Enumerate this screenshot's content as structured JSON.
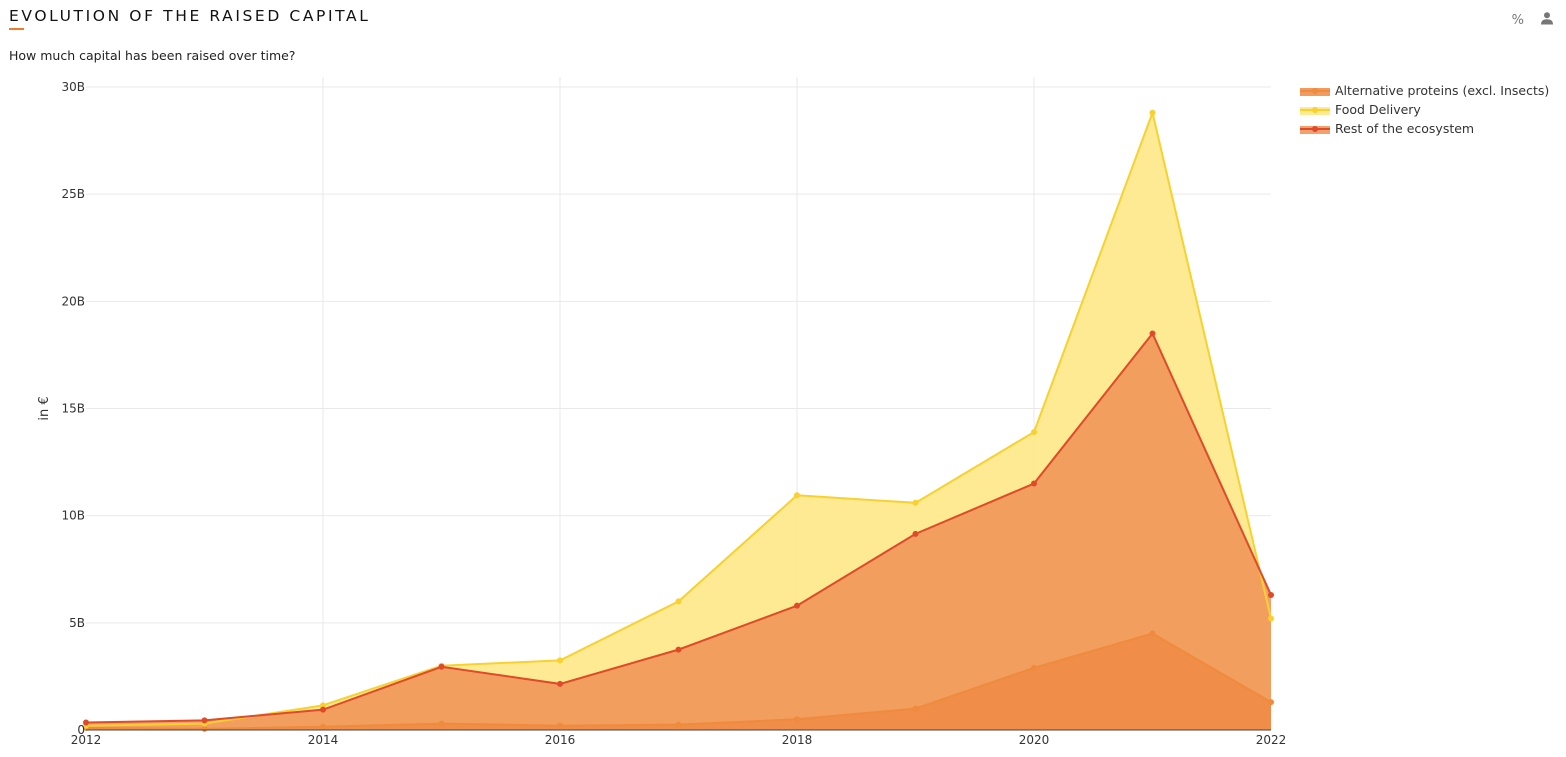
{
  "header": {
    "title": "EVOLUTION OF THE RAISED CAPITAL",
    "subtitle": "How much capital has been raised over time?"
  },
  "toolbar": {
    "percent_label": "%",
    "user_icon": "user-icon"
  },
  "colors": {
    "accent": "#f07b2a",
    "alt_proteins_line": "#f08a3c",
    "alt_proteins_fill": "#ef8a45",
    "food_delivery_line": "#f8d12f",
    "food_delivery_fill": "#fde98c",
    "rest_line": "#df4a2a",
    "rest_fill": "#ee9055"
  },
  "chart_data": {
    "type": "area",
    "title": "EVOLUTION OF THE RAISED CAPITAL",
    "subtitle": "How much capital has been raised over time?",
    "xlabel": "",
    "ylabel": "in €",
    "x": [
      2012,
      2013,
      2014,
      2015,
      2016,
      2017,
      2018,
      2019,
      2020,
      2021,
      2022
    ],
    "xlim": [
      2012,
      2022
    ],
    "ylim": [
      0,
      30000000000
    ],
    "x_ticks": [
      2012,
      2014,
      2016,
      2018,
      2020,
      2022
    ],
    "y_ticks": [
      0,
      5000000000,
      10000000000,
      15000000000,
      20000000000,
      25000000000,
      30000000000
    ],
    "y_tick_labels": [
      "0",
      "5B",
      "10B",
      "15B",
      "20B",
      "25B",
      "30B"
    ],
    "grid": true,
    "legend_position": "top-right",
    "series": [
      {
        "name": "Alternative proteins (excl. Insects)",
        "key": "alt",
        "values": [
          100000000.0,
          50000000.0,
          150000000.0,
          300000000.0,
          200000000.0,
          250000000.0,
          500000000.0,
          1000000000.0,
          2900000000.0,
          4500000000.0,
          1300000000.0
        ]
      },
      {
        "name": "Food Delivery",
        "key": "food",
        "values": [
          200000000.0,
          300000000.0,
          1150000000.0,
          3000000000.0,
          3250000000.0,
          6000000000.0,
          10950000000.0,
          10600000000.0,
          13900000000.0,
          28800000000.0,
          5200000000.0
        ]
      },
      {
        "name": "Rest of the ecosystem",
        "key": "rest",
        "values": [
          350000000.0,
          450000000.0,
          950000000.0,
          2950000000.0,
          2150000000.0,
          3750000000.0,
          5800000000.0,
          9150000000.0,
          11500000000.0,
          18500000000.0,
          6300000000.0
        ]
      }
    ]
  }
}
